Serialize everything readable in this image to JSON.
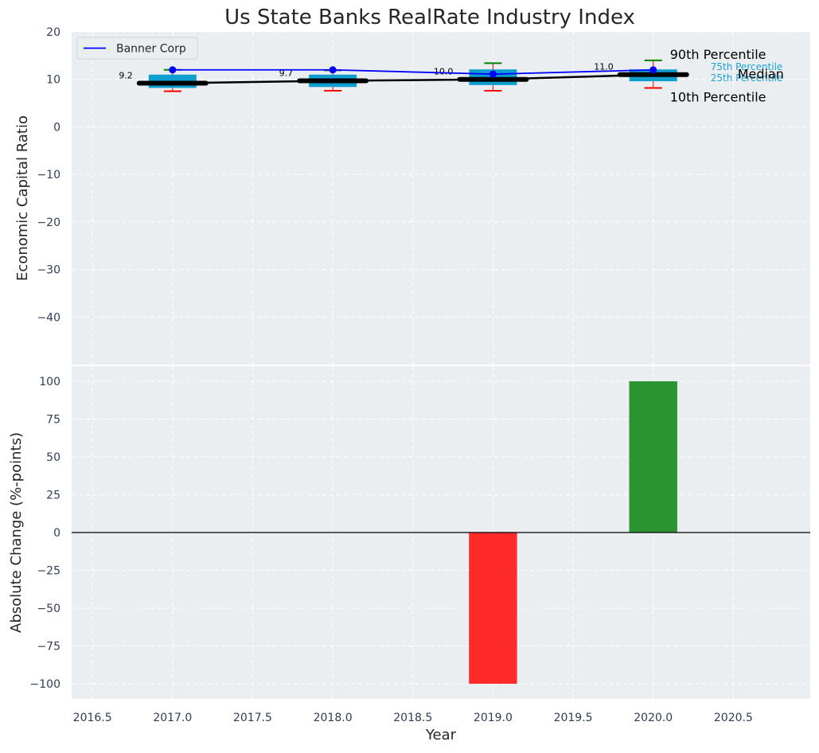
{
  "chart_data": {
    "type": "bar",
    "title": "Us State Banks RealRate Industry Index",
    "xlabel": "Year",
    "x_ticks": [
      "2016.5",
      "2017.0",
      "2017.5",
      "2018.0",
      "2018.5",
      "2019.0",
      "2019.5",
      "2020.0",
      "2020.5"
    ],
    "x_tick_values": [
      2016.5,
      2017.0,
      2017.5,
      2018.0,
      2018.5,
      2019.0,
      2019.5,
      2020.0,
      2020.5
    ],
    "xlim": [
      2016.37,
      2020.98
    ],
    "grid": true,
    "top_panel": {
      "ylabel": "Economic Capital Ratio",
      "ylim": [
        -50,
        20
      ],
      "y_ticks": [
        "20",
        "10",
        "0",
        "−10",
        "−20",
        "−30",
        "−40"
      ],
      "y_tick_values": [
        20,
        10,
        0,
        -10,
        -20,
        -30,
        -40
      ],
      "years": [
        2017,
        2018,
        2019,
        2020
      ],
      "percentile_10": [
        7.5,
        7.6,
        7.6,
        8.2
      ],
      "percentile_25": [
        8.2,
        8.4,
        8.8,
        9.6
      ],
      "median": [
        9.2,
        9.7,
        10.0,
        11.0
      ],
      "percentile_75": [
        11.0,
        11.0,
        12.1,
        12.1
      ],
      "percentile_90": [
        12.0,
        11.9,
        13.4,
        14.0
      ],
      "median_labels": [
        "9.2",
        "9.7",
        "10.0",
        "11.0"
      ],
      "series": [
        {
          "name": "Banner Corp",
          "values": [
            12.0,
            12.0,
            11.1,
            12.0
          ],
          "color": "#0000ff"
        }
      ],
      "legend_labels": {
        "series": "Banner Corp",
        "p90": "90th Percentile",
        "median": "Median",
        "p10": "10th Percentile",
        "p75": "75th Percentile",
        "p25": "25th Percentile"
      },
      "legend_location": "upper-left",
      "colors": {
        "box": "#0e9ecf",
        "median": "#000000",
        "p90": "#008000",
        "p10": "#ff0000",
        "band_labels": "#1aa3d6"
      }
    },
    "bottom_panel": {
      "ylabel": "Absolute Change (%-points)",
      "ylim": [
        -110,
        110
      ],
      "y_ticks": [
        "100",
        "75",
        "50",
        "25",
        "0",
        "−25",
        "−50",
        "−75",
        "−100"
      ],
      "y_tick_values": [
        100,
        75,
        50,
        25,
        0,
        -25,
        -50,
        -75,
        -100
      ],
      "categories": [
        2019,
        2020
      ],
      "values": [
        -100,
        100
      ],
      "colors": {
        "positive": "#2a9530",
        "negative": "#ff2a2a"
      }
    },
    "colors": {
      "panel_bg": "#eaeef0",
      "grid": "#ffffff",
      "tick_text": "#2f3e56"
    }
  }
}
